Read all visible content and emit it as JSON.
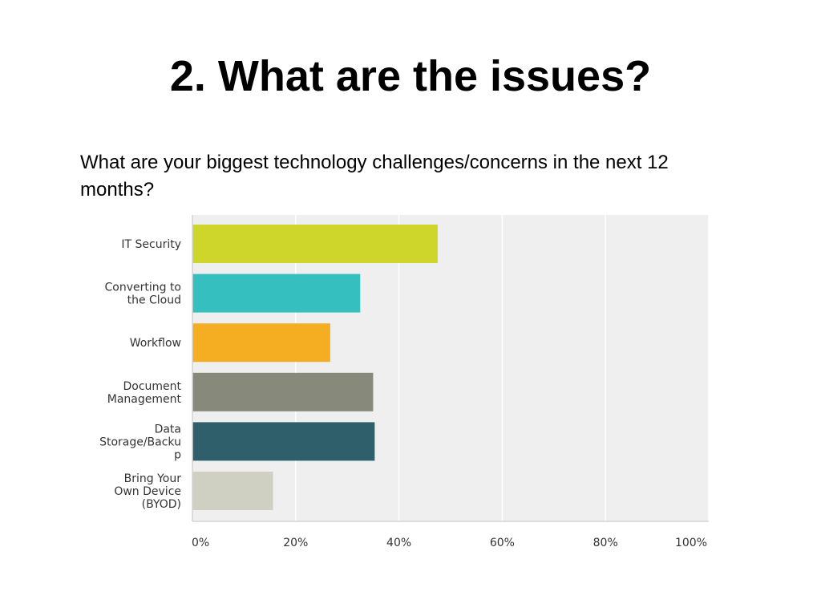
{
  "slide": {
    "title": "2. What are the issues?",
    "question": "What are your biggest technology challenges/concerns in the next 12 months?"
  },
  "chart_data": {
    "type": "bar",
    "orientation": "horizontal",
    "categories": [
      "IT Security",
      "Converting to the Cloud",
      "Workflow",
      "Document Management",
      "Data Storage/Backup",
      "Bring Your Own Device (BYOD)"
    ],
    "category_label_lines": [
      [
        "IT Security"
      ],
      [
        "Converting to",
        "the Cloud"
      ],
      [
        "Workflow"
      ],
      [
        "Document",
        "Management"
      ],
      [
        "Data",
        "Storage/Backu",
        "p"
      ],
      [
        "Bring Your",
        "Own Device",
        "(BYOD)"
      ]
    ],
    "values": [
      47.5,
      32.5,
      26.7,
      35.0,
      35.3,
      15.6
    ],
    "value_unit": "%",
    "colors": [
      "#cfd62b",
      "#35bfbf",
      "#f5ae22",
      "#878a7a",
      "#2f5f6b",
      "#cfcfc2"
    ],
    "xlim": [
      0,
      100
    ],
    "xticks": [
      0,
      20,
      40,
      60,
      80,
      100
    ],
    "xtick_labels": [
      "0%",
      "20%",
      "40%",
      "60%",
      "80%",
      "100%"
    ],
    "plot_background": "#efefef",
    "gridline_color": "#ffffff",
    "grid": true,
    "legend": "none"
  }
}
